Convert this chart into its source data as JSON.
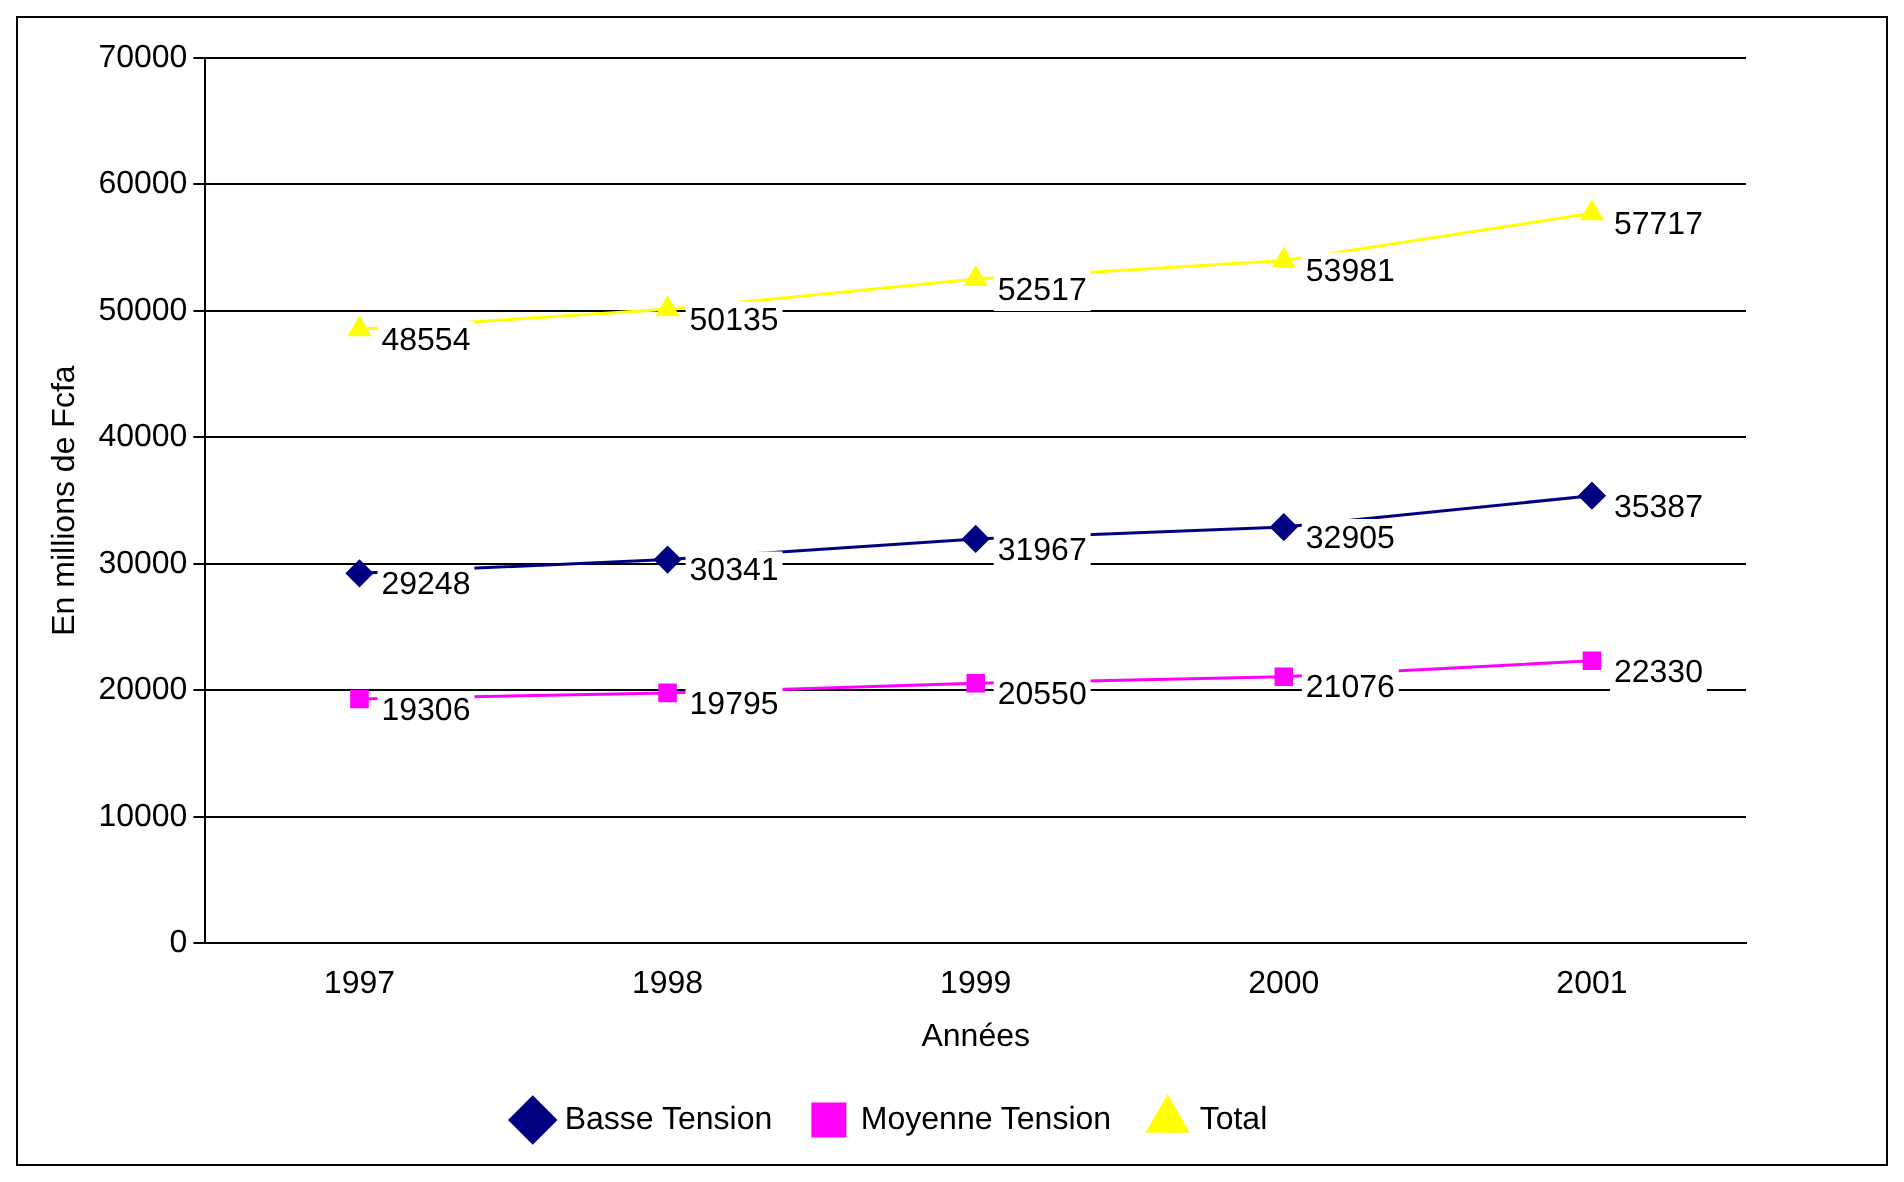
{
  "chart_data": {
    "type": "line",
    "xlabel": "Années",
    "ylabel": "En millions de Fcfa",
    "categories": [
      "1997",
      "1998",
      "1999",
      "2000",
      "2001"
    ],
    "series": [
      {
        "name": "Basse Tension",
        "color": "#000080",
        "marker": "diamond",
        "values": [
          29248,
          30341,
          31967,
          32905,
          35387
        ]
      },
      {
        "name": "Moyenne Tension",
        "color": "#ff00ff",
        "marker": "square",
        "values": [
          19306,
          19795,
          20550,
          21076,
          22330
        ]
      },
      {
        "name": "Total",
        "color": "#ffff00",
        "marker": "triangle",
        "values": [
          48554,
          50135,
          52517,
          53981,
          57717
        ]
      }
    ],
    "ylim": [
      0,
      70000
    ],
    "yticks": [
      0,
      10000,
      20000,
      30000,
      40000,
      50000,
      60000,
      70000
    ],
    "grid": "y",
    "legend": "bottom",
    "data_labels": true
  }
}
